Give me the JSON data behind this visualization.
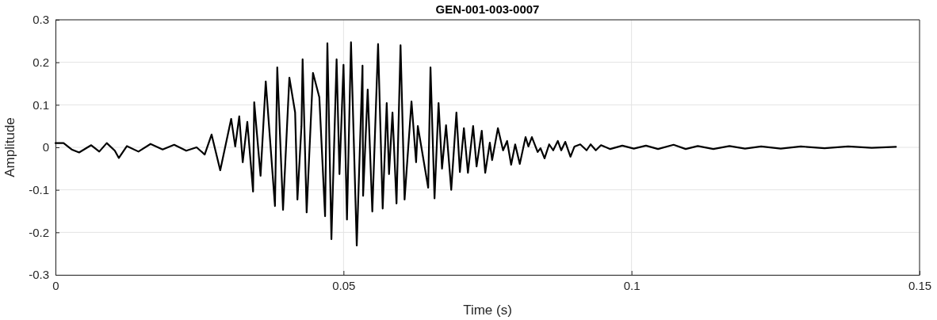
{
  "chart_data": {
    "type": "line",
    "title": "GEN-001-003-0007",
    "xlabel": "Time (s)",
    "ylabel": "Amplitude",
    "xlim": [
      0,
      0.15
    ],
    "ylim": [
      -0.3,
      0.3
    ],
    "xticks": [
      0,
      0.05,
      0.1,
      0.15
    ],
    "yticks": [
      -0.3,
      -0.2,
      -0.1,
      0,
      0.1,
      0.2,
      0.3
    ],
    "grid": true,
    "marker": "none",
    "line_style": "solid",
    "series": [
      {
        "color": "#000000",
        "x": [
          0,
          0.0014,
          0.0028,
          0.0041,
          0.0062,
          0.0076,
          0.0089,
          0.0103,
          0.011,
          0.0124,
          0.0144,
          0.0165,
          0.0186,
          0.0206,
          0.0227,
          0.0245,
          0.0259,
          0.0271,
          0.0286,
          0.0305,
          0.0312,
          0.0319,
          0.0325,
          0.0333,
          0.0343,
          0.0345,
          0.0356,
          0.0365,
          0.0381,
          0.0385,
          0.0395,
          0.0406,
          0.0416,
          0.042,
          0.0427,
          0.0429,
          0.0436,
          0.0447,
          0.0458,
          0.0468,
          0.0472,
          0.0479,
          0.0488,
          0.0493,
          0.05,
          0.0506,
          0.0513,
          0.0523,
          0.0533,
          0.0534,
          0.0542,
          0.055,
          0.056,
          0.0568,
          0.0575,
          0.0579,
          0.0585,
          0.0592,
          0.0599,
          0.0606,
          0.0618,
          0.0626,
          0.0629,
          0.0647,
          0.0651,
          0.0658,
          0.0665,
          0.0671,
          0.0678,
          0.0687,
          0.0696,
          0.0702,
          0.0709,
          0.0716,
          0.0725,
          0.0731,
          0.074,
          0.0746,
          0.0754,
          0.0758,
          0.0768,
          0.0777,
          0.0784,
          0.0791,
          0.0798,
          0.0806,
          0.0816,
          0.0821,
          0.0827,
          0.0837,
          0.0842,
          0.0849,
          0.0857,
          0.0864,
          0.0872,
          0.0878,
          0.0885,
          0.0894,
          0.0901,
          0.0911,
          0.0922,
          0.0929,
          0.0938,
          0.0947,
          0.0963,
          0.0984,
          0.1004,
          0.1025,
          0.1046,
          0.1073,
          0.1094,
          0.1115,
          0.1142,
          0.117,
          0.1197,
          0.1225,
          0.1259,
          0.1294,
          0.1335,
          0.1376,
          0.1417,
          0.1459
        ],
        "values": [
          0.01,
          0.01,
          -0.005,
          -0.012,
          0.005,
          -0.01,
          0.01,
          -0.008,
          -0.025,
          0.003,
          -0.01,
          0.008,
          -0.005,
          0.006,
          -0.008,
          0,
          -0.017,
          0.03,
          -0.054,
          0.067,
          0.002,
          0.073,
          -0.035,
          0.06,
          -0.104,
          0.106,
          -0.067,
          0.155,
          -0.138,
          0.188,
          -0.147,
          0.164,
          0.082,
          -0.123,
          0.05,
          0.207,
          -0.153,
          0.175,
          0.118,
          -0.162,
          0.245,
          -0.216,
          0.207,
          -0.063,
          0.194,
          -0.17,
          0.247,
          -0.231,
          0.192,
          -0.114,
          0.136,
          -0.151,
          0.243,
          -0.144,
          0.104,
          -0.063,
          0.082,
          -0.132,
          0.24,
          -0.123,
          0.108,
          -0.035,
          0.05,
          -0.095,
          0.188,
          -0.12,
          0.104,
          -0.05,
          0.052,
          -0.1,
          0.082,
          -0.058,
          0.045,
          -0.06,
          0.05,
          -0.045,
          0.039,
          -0.06,
          0.011,
          -0.03,
          0.045,
          -0.007,
          0.015,
          -0.041,
          0.007,
          -0.039,
          0.024,
          0.002,
          0.024,
          -0.011,
          -0.002,
          -0.026,
          0.007,
          -0.007,
          0.015,
          -0.007,
          0.013,
          -0.022,
          0.002,
          0.007,
          -0.007,
          0.007,
          -0.007,
          0.005,
          -0.004,
          0.004,
          -0.003,
          0.004,
          -0.004,
          0.006,
          -0.004,
          0.003,
          -0.004,
          0.003,
          -0.003,
          0.002,
          -0.003,
          0.002,
          -0.002,
          0.002,
          -0.001,
          0.001
        ]
      }
    ]
  }
}
